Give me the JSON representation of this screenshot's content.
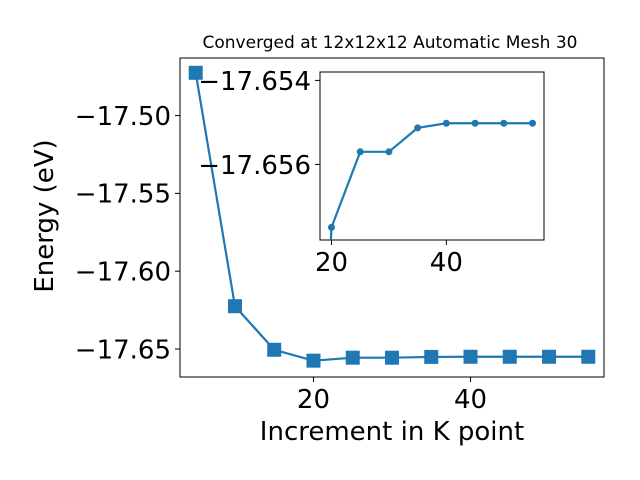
{
  "chart_data": [
    {
      "type": "line",
      "title": "Converged at 12x12x12 Automatic Mesh 30",
      "xlabel": "Increment in K point",
      "ylabel": "Energy (eV)",
      "xlim": [
        3,
        57
      ],
      "ylim": [
        -17.668,
        -17.463
      ],
      "yinverted": false,
      "xticks": [
        20,
        40
      ],
      "yticks": [
        -17.5,
        -17.55,
        -17.6,
        -17.65
      ],
      "ytick_labels": [
        "−17.50",
        "−17.55",
        "−17.60",
        "−17.65"
      ],
      "xtick_labels": [
        "20",
        "40"
      ],
      "grid": false,
      "series": [
        {
          "x": [
            5,
            10,
            15,
            20,
            25,
            30,
            35,
            40,
            45,
            50,
            55
          ],
          "y": [
            -17.4725,
            -17.6225,
            -17.6505,
            -17.6575,
            -17.6556,
            -17.6556,
            -17.6551,
            -17.655,
            -17.655,
            -17.655,
            -17.655
          ],
          "color": "#1f77b4",
          "marker": "square"
        }
      ]
    },
    {
      "type": "line",
      "inset": true,
      "xlim": [
        18,
        57
      ],
      "ylim": [
        -17.6578,
        -17.6538
      ],
      "xticks": [
        20,
        40
      ],
      "yticks": [
        -17.656,
        -17.654
      ],
      "ytick_labels": [
        "−17.656",
        "−17.654"
      ],
      "xtick_labels": [
        "20",
        "40"
      ],
      "grid": false,
      "series": [
        {
          "x": [
            20,
            25,
            30,
            35,
            40,
            45,
            50,
            55
          ],
          "y": [
            -17.6575,
            -17.6557,
            -17.6557,
            -17.65513,
            -17.65502,
            -17.65502,
            -17.65502,
            -17.65502
          ],
          "color": "#1f77b4",
          "marker": "circle"
        }
      ]
    }
  ]
}
